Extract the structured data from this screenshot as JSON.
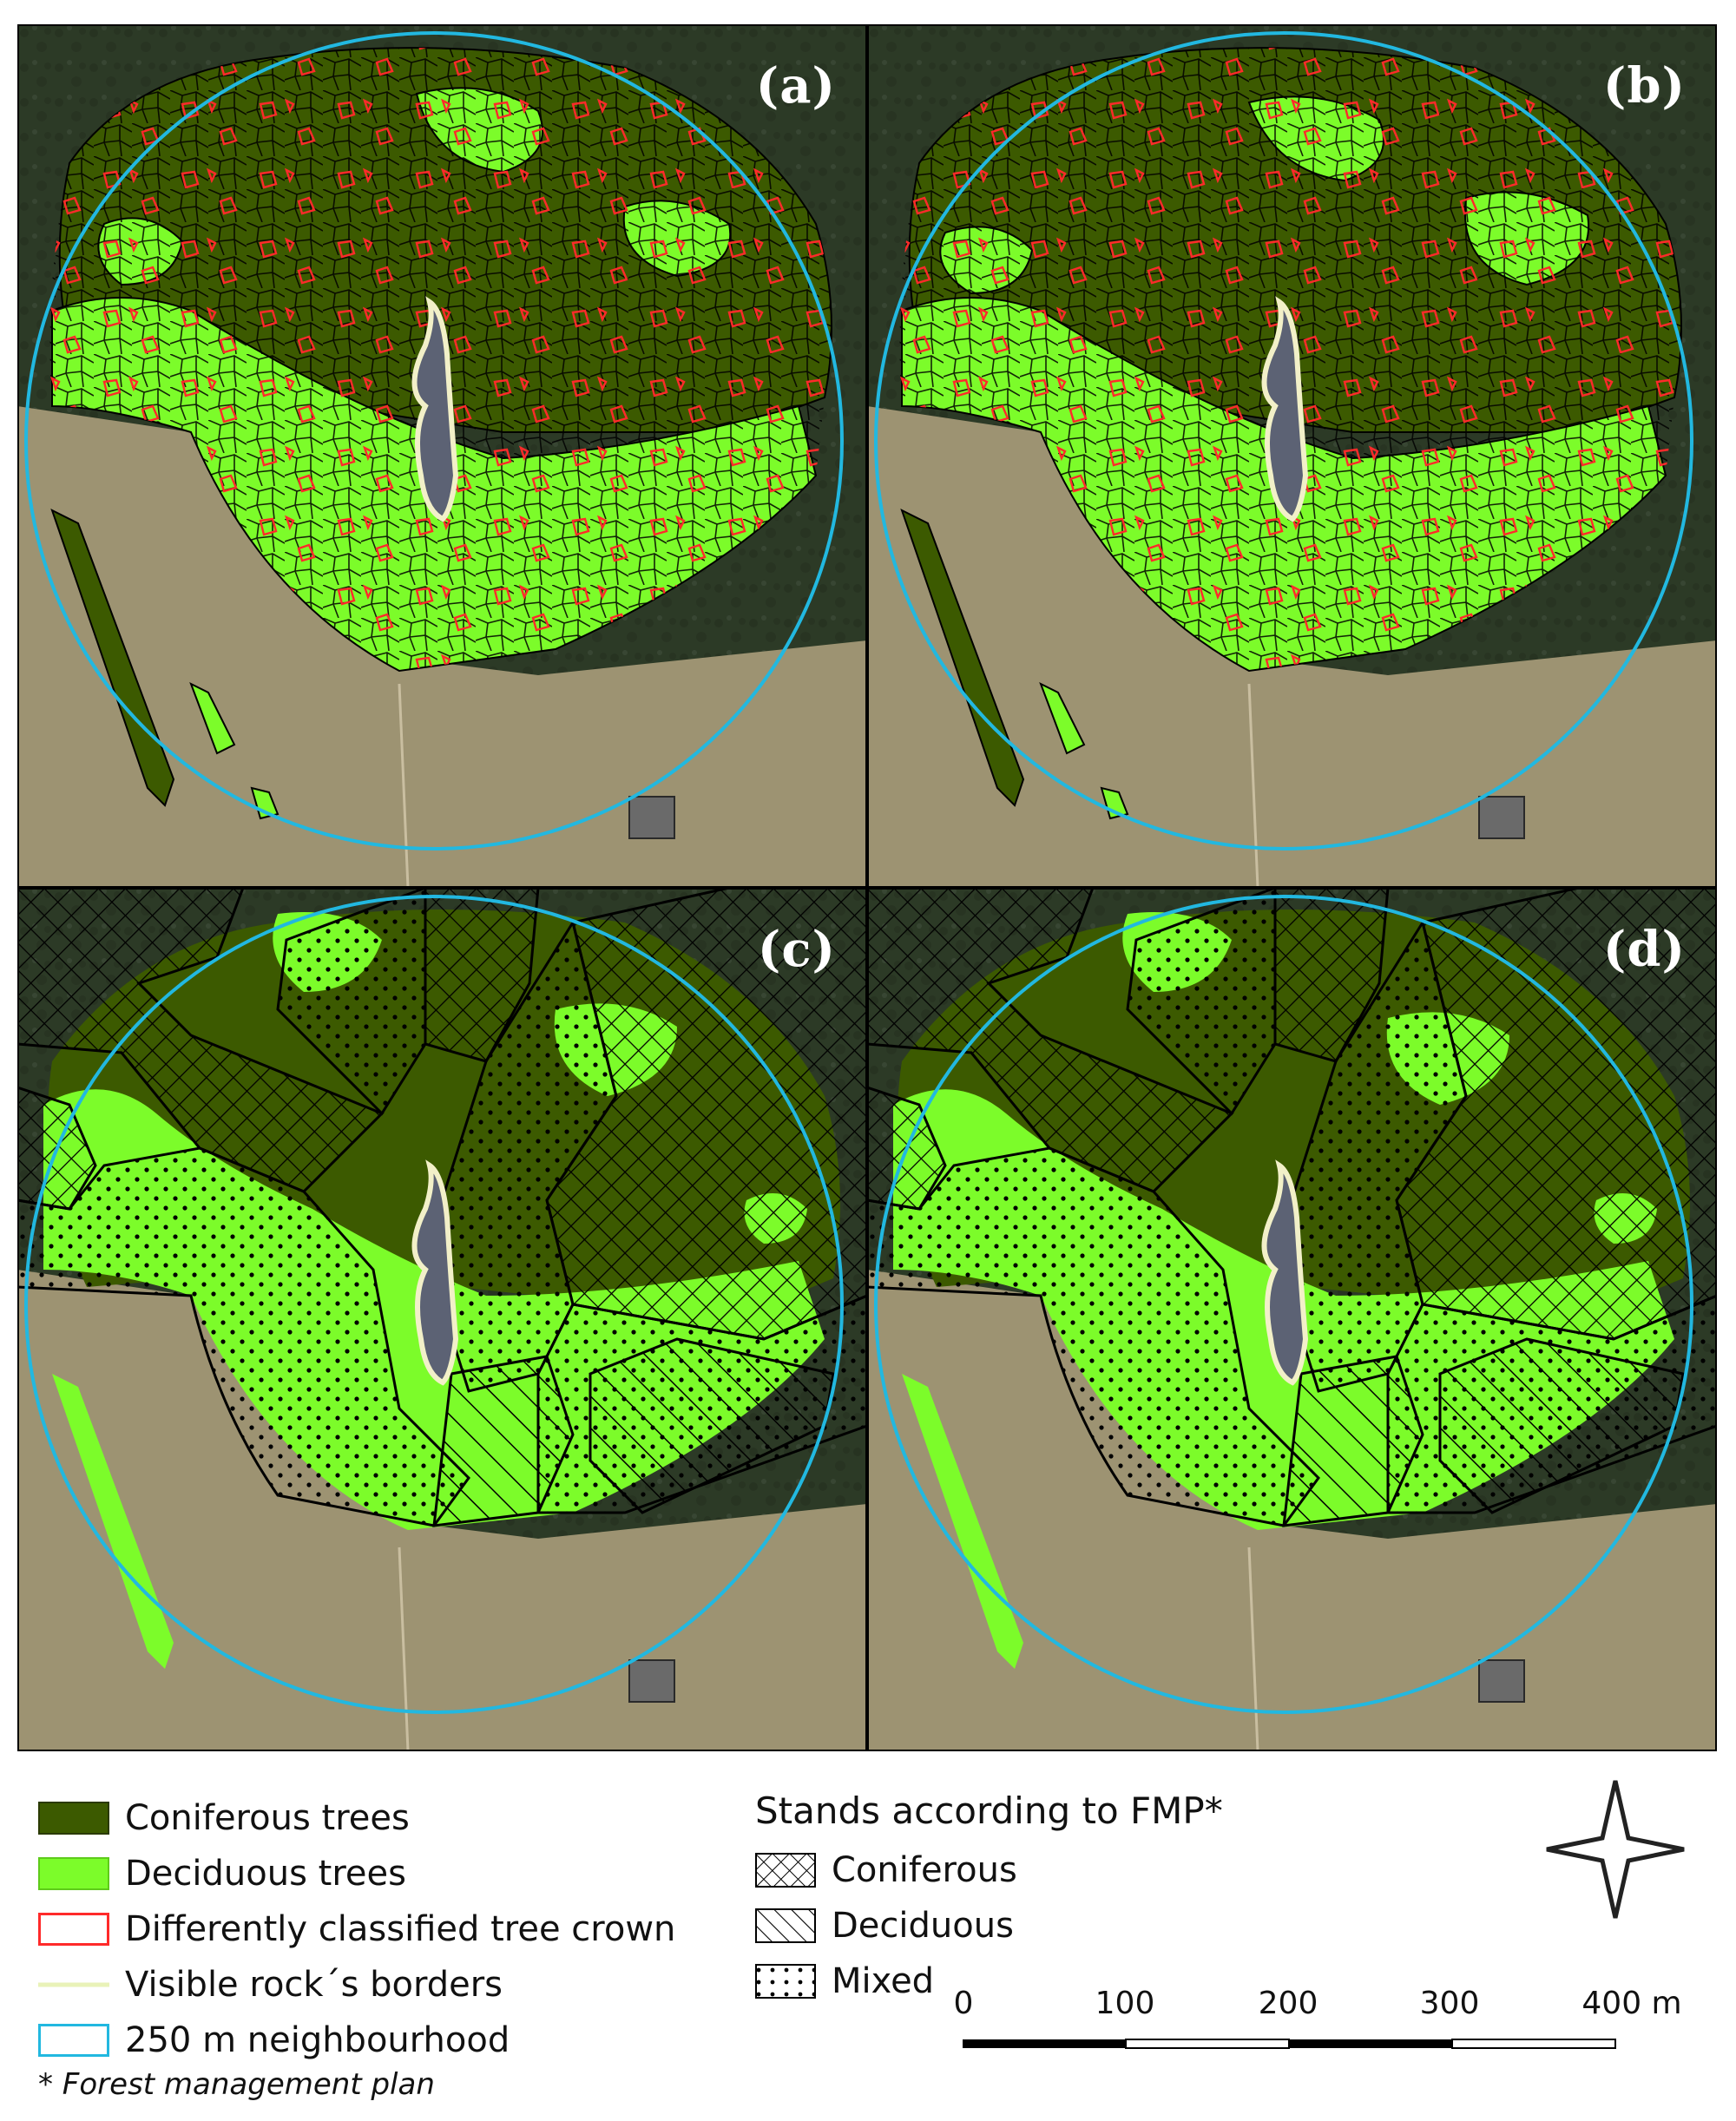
{
  "panels": [
    {
      "id": "a",
      "label": "(a)",
      "kind": "crowns"
    },
    {
      "id": "b",
      "label": "(b)",
      "kind": "crowns"
    },
    {
      "id": "c",
      "label": "(c)",
      "kind": "stands"
    },
    {
      "id": "d",
      "label": "(d)",
      "kind": "stands"
    }
  ],
  "colors": {
    "coniferous": "#3c5a00",
    "deciduous": "#7cfc2a",
    "differently_classified": "#ff2a2a",
    "rock_border": "#f2f0c8",
    "neighbourhood": "#22b8e0",
    "meadow": "#9d9372",
    "forest_dark": "#2c3a26"
  },
  "legend": {
    "items": [
      {
        "key": "coniferous",
        "label": "Coniferous trees"
      },
      {
        "key": "deciduous",
        "label": "Deciduous trees"
      },
      {
        "key": "differently_classified",
        "label": "Differently classified tree crown"
      },
      {
        "key": "rock_border",
        "label": "Visible rock´s borders"
      },
      {
        "key": "neighbourhood",
        "label": "250 m neighbourhood"
      }
    ],
    "fmp_title": "Stands according to FMP*",
    "fmp_items": [
      {
        "pattern": "crosshatch",
        "label": "Coniferous"
      },
      {
        "pattern": "diagonal",
        "label": "Deciduous"
      },
      {
        "pattern": "dots",
        "label": "Mixed"
      }
    ],
    "footnote": "* Forest management plan"
  },
  "scale": {
    "ticks": [
      "0",
      "100",
      "200",
      "300",
      "400 m"
    ]
  },
  "compass": {
    "icon": "north-arrow-star-icon"
  }
}
